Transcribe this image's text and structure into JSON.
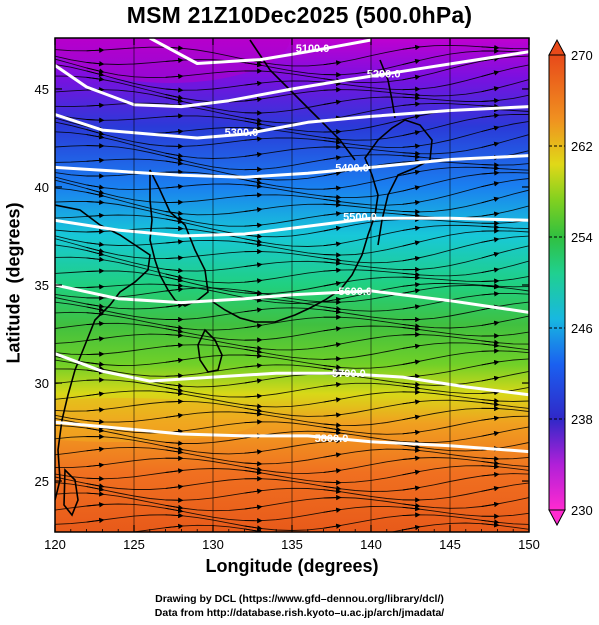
{
  "chart_data": {
    "type": "heatmap",
    "title": "MSM 21Z10Dec2025 (500.0hPa)",
    "xlabel": "Longitude (degrees)",
    "ylabel": "Latitude  (degrees)",
    "xlim": [
      120,
      150
    ],
    "ylim": [
      22.4,
      47.6
    ],
    "x_ticks": [
      120,
      125,
      130,
      135,
      140,
      145,
      150
    ],
    "y_ticks": [
      25,
      30,
      35,
      40,
      45
    ],
    "colorbar": {
      "min": 230,
      "max": 270,
      "ticks": [
        230,
        238,
        246,
        254,
        262,
        270
      ],
      "placement": "right"
    },
    "temperature_by_latitude": [
      {
        "lat": 22.4,
        "value": 266
      },
      {
        "lat": 25,
        "value": 265
      },
      {
        "lat": 27.5,
        "value": 264
      },
      {
        "lat": 29,
        "value": 262
      },
      {
        "lat": 30.5,
        "value": 259
      },
      {
        "lat": 33,
        "value": 256
      },
      {
        "lat": 36,
        "value": 252
      },
      {
        "lat": 38,
        "value": 249
      },
      {
        "lat": 40,
        "value": 246
      },
      {
        "lat": 42,
        "value": 243
      },
      {
        "lat": 44,
        "value": 240
      },
      {
        "lat": 46,
        "value": 236
      },
      {
        "lat": 47.6,
        "value": 233
      }
    ],
    "contours": [
      {
        "label": "5100.0",
        "label_at": [
          136.3,
          47.1
        ],
        "points": [
          [
            126,
            47.6
          ],
          [
            129,
            46.3
          ],
          [
            133,
            46.5
          ],
          [
            136,
            46.9
          ],
          [
            140,
            47.5
          ]
        ]
      },
      {
        "label": "5200.0",
        "label_at": [
          140.8,
          45.8
        ],
        "points": [
          [
            120,
            46.2
          ],
          [
            122,
            45.1
          ],
          [
            125,
            44.2
          ],
          [
            128,
            44.1
          ],
          [
            131,
            44.4
          ],
          [
            135,
            45.0
          ],
          [
            138,
            45.4
          ],
          [
            142,
            45.9
          ],
          [
            146,
            46.4
          ],
          [
            150,
            46.9
          ]
        ]
      },
      {
        "label": "5300.0",
        "label_at": [
          131.8,
          42.8
        ],
        "points": [
          [
            120,
            43.7
          ],
          [
            123,
            42.9
          ],
          [
            126,
            42.7
          ],
          [
            129,
            42.5
          ],
          [
            132,
            42.7
          ],
          [
            136,
            43.3
          ],
          [
            140,
            43.6
          ],
          [
            145,
            43.9
          ],
          [
            150,
            44.1
          ]
        ]
      },
      {
        "label": "5400.0",
        "label_at": [
          138.8,
          41.0
        ],
        "points": [
          [
            120,
            41.0
          ],
          [
            124,
            40.8
          ],
          [
            128,
            40.6
          ],
          [
            132,
            40.5
          ],
          [
            136,
            40.7
          ],
          [
            140,
            41.0
          ],
          [
            145,
            41.4
          ],
          [
            150,
            41.6
          ]
        ]
      },
      {
        "label": "5500.0",
        "label_at": [
          139.3,
          38.5
        ],
        "points": [
          [
            120,
            38.3
          ],
          [
            124,
            37.8
          ],
          [
            128,
            37.5
          ],
          [
            132,
            37.6
          ],
          [
            136,
            38.0
          ],
          [
            140,
            38.4
          ],
          [
            145,
            38.4
          ],
          [
            150,
            38.3
          ]
        ]
      },
      {
        "label": "5600.0",
        "label_at": [
          139.0,
          34.7
        ],
        "points": [
          [
            120,
            35.0
          ],
          [
            124,
            34.3
          ],
          [
            128,
            34.1
          ],
          [
            132,
            34.3
          ],
          [
            135,
            34.5
          ],
          [
            140,
            34.7
          ],
          [
            145,
            34.2
          ],
          [
            150,
            33.6
          ]
        ]
      },
      {
        "label": "5700.0",
        "label_at": [
          138.6,
          30.5
        ],
        "points": [
          [
            120,
            31.5
          ],
          [
            123,
            30.6
          ],
          [
            126,
            30.1
          ],
          [
            130,
            30.3
          ],
          [
            134,
            30.5
          ],
          [
            138,
            30.5
          ],
          [
            142,
            30.3
          ],
          [
            146,
            29.8
          ],
          [
            150,
            29.4
          ]
        ]
      },
      {
        "label": "5800.0",
        "label_at": [
          137.5,
          27.2
        ],
        "points": [
          [
            120,
            28.0
          ],
          [
            124,
            27.7
          ],
          [
            128,
            27.4
          ],
          [
            132,
            27.3
          ],
          [
            136,
            27.3
          ],
          [
            140,
            27.0
          ],
          [
            145,
            26.8
          ],
          [
            150,
            26.5
          ]
        ]
      }
    ]
  },
  "credits": {
    "line1": "Drawing by DCL (https://www.gfd–dennou.org/library/dcl/)",
    "line2": "Data from http://database.rish.kyoto–u.ac.jp/arch/jmadata/"
  }
}
